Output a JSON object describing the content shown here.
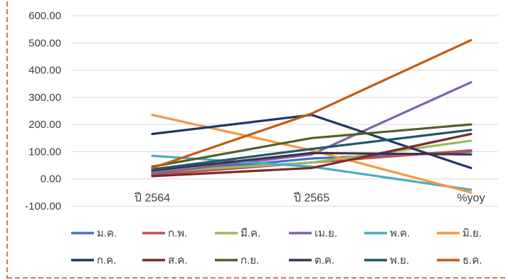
{
  "chart_data": {
    "type": "line",
    "categories": [
      "ปี 2564",
      "ปี 2565",
      "%yoy"
    ],
    "ylim": [
      -100,
      600
    ],
    "yticks": [
      "-100.00",
      "0.00",
      "100.00",
      "200.00",
      "300.00",
      "400.00",
      "500.00",
      "600.00"
    ],
    "ytick_values": [
      -100,
      0,
      100,
      200,
      300,
      400,
      500,
      600
    ],
    "grid": true,
    "legend_position": "bottom",
    "series": [
      {
        "name": "ม.ค.",
        "color": "#4472c4",
        "values": [
          20,
          75,
          100
        ]
      },
      {
        "name": "ก.พ.",
        "color": "#c0504d",
        "values": [
          15,
          60,
          105
        ]
      },
      {
        "name": "มี.ค.",
        "color": "#9bbb59",
        "values": [
          25,
          60,
          140
        ]
      },
      {
        "name": "เม.ย.",
        "color": "#8064a2",
        "values": [
          20,
          90,
          355
        ]
      },
      {
        "name": "พ.ค.",
        "color": "#4bacc6",
        "values": [
          85,
          45,
          -40
        ]
      },
      {
        "name": "มิ.ย.",
        "color": "#f79646",
        "values": [
          235,
          105,
          -50
        ]
      },
      {
        "name": "ก.ค.",
        "color": "#1f3864",
        "values": [
          165,
          235,
          40
        ]
      },
      {
        "name": "ส.ค.",
        "color": "#7b2c2c",
        "values": [
          10,
          40,
          165
        ]
      },
      {
        "name": "ก.ย.",
        "color": "#4f6228",
        "values": [
          45,
          150,
          200
        ]
      },
      {
        "name": "ต.ค.",
        "color": "#3f3151",
        "values": [
          30,
          95,
          90
        ]
      },
      {
        "name": "พ.ย.",
        "color": "#215867",
        "values": [
          35,
          110,
          180
        ]
      },
      {
        "name": "ธ.ค.",
        "color": "#c55a11",
        "values": [
          40,
          240,
          510
        ]
      }
    ]
  }
}
